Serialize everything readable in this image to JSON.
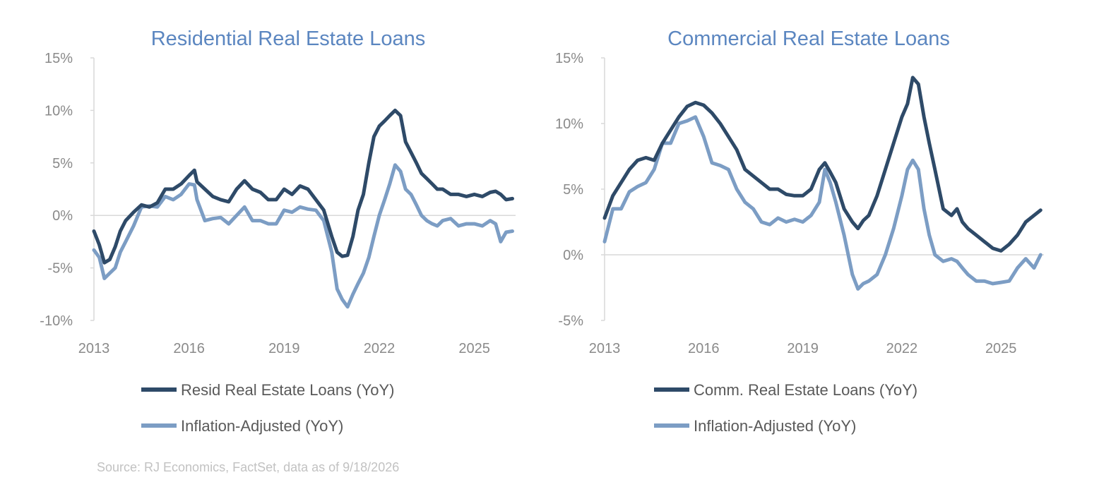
{
  "colors": {
    "dark_series": "#2e4a68",
    "light_series": "#7c9dc4",
    "title": "#5b86c0",
    "axis_text": "#8a8a8a",
    "axis_line": "#d9d9d9",
    "legend_text": "#595959",
    "source_text": "#c2c2c2"
  },
  "source": "Source: RJ Economics,  FactSet, data as of 9/18/2026",
  "chart_data": [
    {
      "type": "line",
      "title": "Residential Real Estate Loans",
      "xlim": [
        2013,
        2026.3
      ],
      "ylim": [
        -10,
        15
      ],
      "yticks": [
        15,
        10,
        5,
        0,
        -5,
        -10
      ],
      "ytick_labels": [
        "15%",
        "10%",
        "5%",
        "0%",
        "-5%",
        "-10%"
      ],
      "xticks": [
        2013,
        2016,
        2019,
        2022,
        2025
      ],
      "xtick_labels": [
        "2013",
        "2016",
        "2019",
        "2022",
        "2025"
      ],
      "grid": false,
      "legend_position": "bottom",
      "series": [
        {
          "name": "Resid Real Estate Loans (YoY)",
          "color_key": "dark_series",
          "x": [
            2013.0,
            2013.17,
            2013.33,
            2013.5,
            2013.67,
            2013.83,
            2014.0,
            2014.25,
            2014.5,
            2014.75,
            2015.0,
            2015.25,
            2015.5,
            2015.75,
            2016.0,
            2016.17,
            2016.25,
            2016.5,
            2016.75,
            2017.0,
            2017.25,
            2017.5,
            2017.75,
            2018.0,
            2018.25,
            2018.5,
            2018.75,
            2019.0,
            2019.25,
            2019.5,
            2019.75,
            2020.0,
            2020.25,
            2020.5,
            2020.67,
            2020.83,
            2021.0,
            2021.17,
            2021.33,
            2021.5,
            2021.67,
            2021.83,
            2022.0,
            2022.17,
            2022.33,
            2022.5,
            2022.67,
            2022.83,
            2023.0,
            2023.17,
            2023.33,
            2023.5,
            2023.67,
            2023.83,
            2024.0,
            2024.25,
            2024.5,
            2024.75,
            2025.0,
            2025.25,
            2025.5,
            2025.67,
            2025.83,
            2026.0,
            2026.2
          ],
          "y": [
            -1.5,
            -2.8,
            -4.5,
            -4.2,
            -3.0,
            -1.5,
            -0.5,
            0.3,
            1.0,
            0.8,
            1.2,
            2.5,
            2.5,
            3.0,
            3.8,
            4.3,
            3.2,
            2.5,
            1.8,
            1.5,
            1.3,
            2.5,
            3.3,
            2.5,
            2.2,
            1.5,
            1.5,
            2.5,
            2.0,
            2.8,
            2.5,
            1.5,
            0.5,
            -2.0,
            -3.5,
            -3.9,
            -3.8,
            -2.0,
            0.5,
            2.0,
            5.0,
            7.5,
            8.5,
            9.0,
            9.5,
            10.0,
            9.5,
            7.0,
            6.0,
            5.0,
            4.0,
            3.5,
            3.0,
            2.5,
            2.5,
            2.0,
            2.0,
            1.8,
            2.0,
            1.8,
            2.2,
            2.3,
            2.0,
            1.5,
            1.6
          ]
        },
        {
          "name": "Inflation-Adjusted (YoY)",
          "color_key": "light_series",
          "x": [
            2013.0,
            2013.17,
            2013.33,
            2013.5,
            2013.67,
            2013.83,
            2014.0,
            2014.25,
            2014.5,
            2014.75,
            2015.0,
            2015.25,
            2015.5,
            2015.75,
            2016.0,
            2016.17,
            2016.25,
            2016.5,
            2016.75,
            2017.0,
            2017.25,
            2017.5,
            2017.75,
            2018.0,
            2018.25,
            2018.5,
            2018.75,
            2019.0,
            2019.25,
            2019.5,
            2019.75,
            2020.0,
            2020.25,
            2020.5,
            2020.67,
            2020.83,
            2021.0,
            2021.17,
            2021.33,
            2021.5,
            2021.67,
            2021.83,
            2022.0,
            2022.17,
            2022.33,
            2022.5,
            2022.67,
            2022.83,
            2023.0,
            2023.17,
            2023.33,
            2023.5,
            2023.67,
            2023.83,
            2024.0,
            2024.25,
            2024.5,
            2024.75,
            2025.0,
            2025.25,
            2025.5,
            2025.67,
            2025.83,
            2026.0,
            2026.2
          ],
          "y": [
            -3.3,
            -4.0,
            -6.0,
            -5.5,
            -5.0,
            -3.5,
            -2.5,
            -1.0,
            0.8,
            0.9,
            0.8,
            1.8,
            1.5,
            2.0,
            3.0,
            2.9,
            1.5,
            -0.5,
            -0.3,
            -0.2,
            -0.8,
            0.0,
            0.8,
            -0.5,
            -0.5,
            -0.8,
            -0.8,
            0.5,
            0.3,
            0.8,
            0.6,
            0.5,
            -0.5,
            -3.5,
            -7.0,
            -8.0,
            -8.7,
            -7.5,
            -6.5,
            -5.5,
            -4.0,
            -2.0,
            0.0,
            1.5,
            3.0,
            4.8,
            4.2,
            2.5,
            2.0,
            1.0,
            0.0,
            -0.5,
            -0.8,
            -1.0,
            -0.5,
            -0.3,
            -1.0,
            -0.8,
            -0.8,
            -1.0,
            -0.5,
            -0.8,
            -2.5,
            -1.6,
            -1.5
          ]
        }
      ]
    },
    {
      "type": "line",
      "title": "Commercial Real Estate Loans",
      "xlim": [
        2013,
        2026.3
      ],
      "ylim": [
        -5,
        15
      ],
      "yticks": [
        15,
        10,
        5,
        0,
        -5
      ],
      "ytick_labels": [
        "15%",
        "10%",
        "5%",
        "0%",
        "-5%"
      ],
      "xticks": [
        2013,
        2016,
        2019,
        2022,
        2025
      ],
      "xtick_labels": [
        "2013",
        "2016",
        "2019",
        "2022",
        "2025"
      ],
      "grid": false,
      "legend_position": "bottom",
      "series": [
        {
          "name": "Comm. Real Estate Loans (YoY)",
          "color_key": "dark_series",
          "x": [
            2013.0,
            2013.25,
            2013.5,
            2013.75,
            2014.0,
            2014.25,
            2014.5,
            2014.75,
            2015.0,
            2015.25,
            2015.5,
            2015.75,
            2016.0,
            2016.25,
            2016.5,
            2016.75,
            2017.0,
            2017.25,
            2017.5,
            2017.75,
            2018.0,
            2018.25,
            2018.5,
            2018.75,
            2019.0,
            2019.25,
            2019.5,
            2019.67,
            2019.83,
            2020.0,
            2020.25,
            2020.5,
            2020.67,
            2020.83,
            2021.0,
            2021.25,
            2021.5,
            2021.75,
            2022.0,
            2022.17,
            2022.33,
            2022.5,
            2022.67,
            2022.83,
            2023.0,
            2023.25,
            2023.5,
            2023.67,
            2023.83,
            2024.0,
            2024.25,
            2024.5,
            2024.75,
            2025.0,
            2025.25,
            2025.5,
            2025.75,
            2026.0,
            2026.2
          ],
          "y": [
            2.8,
            4.5,
            5.5,
            6.5,
            7.2,
            7.4,
            7.2,
            8.5,
            9.5,
            10.5,
            11.3,
            11.6,
            11.4,
            10.8,
            10.0,
            9.0,
            8.0,
            6.5,
            6.0,
            5.5,
            5.0,
            5.0,
            4.6,
            4.5,
            4.5,
            5.0,
            6.5,
            7.0,
            6.3,
            5.5,
            3.5,
            2.5,
            2.0,
            2.6,
            3.0,
            4.5,
            6.5,
            8.5,
            10.5,
            11.5,
            13.5,
            13.0,
            10.5,
            8.5,
            6.5,
            3.5,
            3.0,
            3.5,
            2.5,
            2.0,
            1.5,
            1.0,
            0.5,
            0.3,
            0.8,
            1.5,
            2.5,
            3.0,
            3.4
          ]
        },
        {
          "name": "Inflation-Adjusted (YoY)",
          "color_key": "light_series",
          "x": [
            2013.0,
            2013.25,
            2013.5,
            2013.75,
            2014.0,
            2014.25,
            2014.5,
            2014.75,
            2015.0,
            2015.25,
            2015.5,
            2015.75,
            2016.0,
            2016.25,
            2016.5,
            2016.75,
            2017.0,
            2017.25,
            2017.5,
            2017.75,
            2018.0,
            2018.25,
            2018.5,
            2018.75,
            2019.0,
            2019.25,
            2019.5,
            2019.67,
            2019.83,
            2020.0,
            2020.25,
            2020.5,
            2020.67,
            2020.83,
            2021.0,
            2021.25,
            2021.5,
            2021.75,
            2022.0,
            2022.17,
            2022.33,
            2022.5,
            2022.67,
            2022.83,
            2023.0,
            2023.25,
            2023.5,
            2023.67,
            2023.83,
            2024.0,
            2024.25,
            2024.5,
            2024.75,
            2025.0,
            2025.25,
            2025.5,
            2025.75,
            2026.0,
            2026.2
          ],
          "y": [
            1.0,
            3.5,
            3.5,
            4.8,
            5.2,
            5.5,
            6.5,
            8.5,
            8.5,
            10.0,
            10.2,
            10.5,
            9.0,
            7.0,
            6.8,
            6.5,
            5.0,
            4.0,
            3.5,
            2.5,
            2.3,
            2.8,
            2.5,
            2.7,
            2.5,
            3.0,
            4.0,
            6.5,
            5.5,
            4.0,
            1.5,
            -1.5,
            -2.6,
            -2.2,
            -2.0,
            -1.5,
            0.0,
            2.0,
            4.5,
            6.5,
            7.2,
            6.5,
            3.5,
            1.5,
            0.0,
            -0.5,
            -0.3,
            -0.5,
            -1.0,
            -1.5,
            -2.0,
            -2.0,
            -2.2,
            -2.1,
            -2.0,
            -1.0,
            -0.3,
            -1.0,
            0.0
          ]
        }
      ]
    }
  ]
}
